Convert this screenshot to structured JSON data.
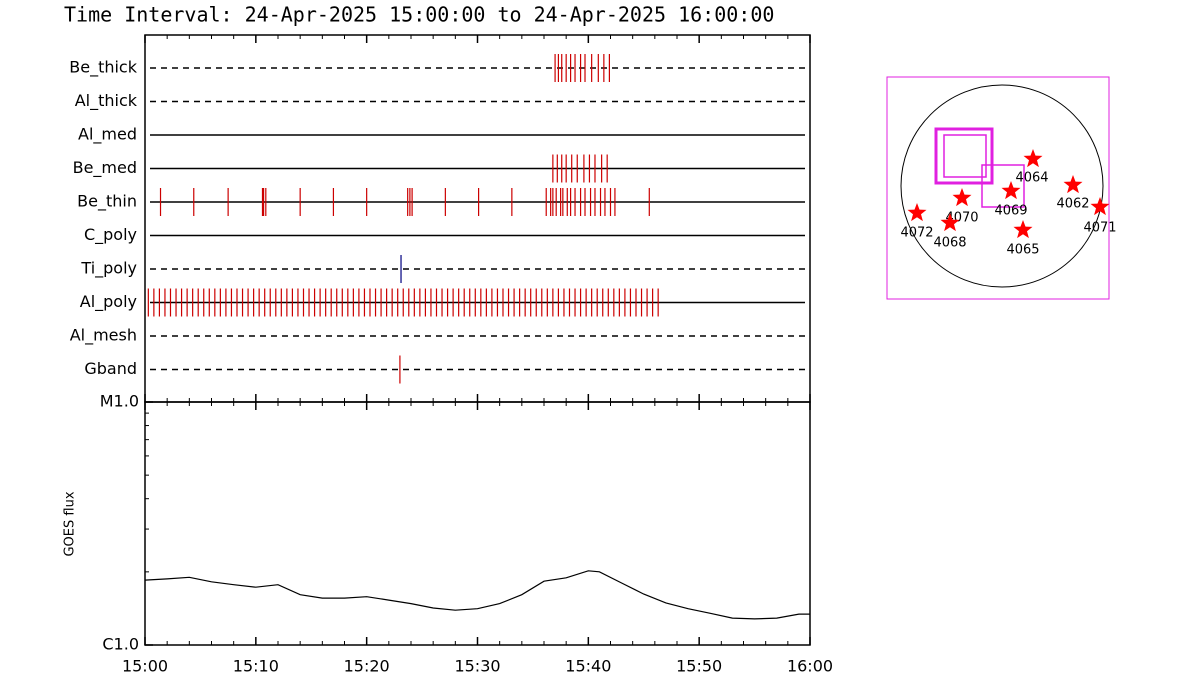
{
  "chart_data": [
    {
      "type": "event",
      "title": "Time Interval: 24-Apr-2025 15:00:00 to 24-Apr-2025 16:00:00",
      "xlim": [
        0,
        60
      ],
      "xticks": [
        0,
        10,
        20,
        30,
        40,
        50,
        60
      ],
      "minor_xticks": [
        2,
        4,
        6,
        8,
        12,
        14,
        16,
        18,
        22,
        24,
        26,
        28,
        32,
        34,
        36,
        38,
        42,
        44,
        46,
        48,
        52,
        54,
        56,
        58
      ],
      "series": [
        {
          "name": "Be_thick",
          "color": "#cc0000",
          "line_style": "dashed",
          "values": [
            37.0,
            37.3,
            37.6,
            38.0,
            38.4,
            38.8,
            39.3,
            39.7,
            40.3,
            40.9,
            41.4,
            41.9
          ]
        },
        {
          "name": "Al_thick",
          "color": "#cc0000",
          "line_style": "dashed",
          "values": []
        },
        {
          "name": "Al_med",
          "color": "#cc0000",
          "line_style": "solid",
          "values": []
        },
        {
          "name": "Be_med",
          "color": "#cc0000",
          "line_style": "solid",
          "values": [
            36.8,
            37.2,
            37.6,
            38.0,
            38.5,
            39.0,
            39.6,
            40.1,
            40.6,
            41.2,
            41.7
          ]
        },
        {
          "name": "Be_thin",
          "color": "#cc0000",
          "line_style": "solid",
          "values": [
            1.4,
            4.4,
            7.5,
            10.6,
            10.7,
            10.9,
            14.0,
            17.0,
            20.0,
            23.7,
            23.9,
            24.1,
            27.1,
            30.1,
            33.1,
            36.2,
            36.6,
            36.8,
            37.1,
            37.5,
            37.7,
            38.1,
            38.4,
            38.8,
            39.3,
            39.7,
            40.2,
            40.6,
            41.1,
            41.5,
            42.0,
            42.4,
            45.5
          ]
        },
        {
          "name": "C_poly",
          "color": "#cc0000",
          "line_style": "solid",
          "values": []
        },
        {
          "name": "Ti_poly",
          "color": "#000080",
          "line_style": "dashed",
          "values": [
            23.1
          ]
        },
        {
          "name": "Al_poly",
          "color": "#cc0000",
          "line_style": "solid",
          "values": [
            0.3,
            0.8,
            1.3,
            1.8,
            2.3,
            2.8,
            3.3,
            3.8,
            4.3,
            4.8,
            5.3,
            5.8,
            6.3,
            6.8,
            7.3,
            7.8,
            8.3,
            8.8,
            9.3,
            9.8,
            10.3,
            10.8,
            11.3,
            11.8,
            12.3,
            12.8,
            13.3,
            13.8,
            14.3,
            14.8,
            15.3,
            15.8,
            16.3,
            16.8,
            17.3,
            17.8,
            18.3,
            18.8,
            19.3,
            19.8,
            20.3,
            20.8,
            21.3,
            21.8,
            22.3,
            22.8,
            23.3,
            23.8,
            24.3,
            24.8,
            25.3,
            25.8,
            26.3,
            26.8,
            27.3,
            27.8,
            28.3,
            28.8,
            29.3,
            29.8,
            30.3,
            30.8,
            31.3,
            31.8,
            32.3,
            32.8,
            33.3,
            33.8,
            34.3,
            34.8,
            35.3,
            35.8,
            36.3,
            36.8,
            37.3,
            37.8,
            38.3,
            38.8,
            39.3,
            39.8,
            40.3,
            40.8,
            41.3,
            41.8,
            42.3,
            42.8,
            43.3,
            43.8,
            44.3,
            44.8,
            45.3,
            45.8,
            46.3
          ]
        },
        {
          "name": "Al_mesh",
          "color": "#cc0000",
          "line_style": "dashed",
          "values": []
        },
        {
          "name": "Gband",
          "color": "#cc0000",
          "line_style": "dashed",
          "values": [
            23.0
          ]
        }
      ]
    },
    {
      "type": "line",
      "y_label": "GOES flux",
      "log_y": true,
      "color": "#000000",
      "xlim": [
        0,
        60
      ],
      "xticks": [
        {
          "value": 0,
          "label": "15:00"
        },
        {
          "value": 10,
          "label": "15:10"
        },
        {
          "value": 20,
          "label": "15:20"
        },
        {
          "value": 30,
          "label": "15:30"
        },
        {
          "value": 40,
          "label": "15:40"
        },
        {
          "value": 50,
          "label": "15:50"
        },
        {
          "value": 60,
          "label": "16:00"
        }
      ],
      "minor_xticks": [
        2,
        4,
        6,
        8,
        12,
        14,
        16,
        18,
        22,
        24,
        26,
        28,
        32,
        34,
        36,
        38,
        42,
        44,
        46,
        48,
        52,
        54,
        56,
        58
      ],
      "ylim": [
        1e-06,
        1e-05
      ],
      "yticks": [
        {
          "value": 1e-06,
          "label": "C1.0"
        },
        {
          "value": 1e-05,
          "label": "M1.0"
        }
      ],
      "minor_yticks": [
        2e-06,
        3e-06,
        4e-06,
        5e-06,
        6e-06,
        7e-06,
        8e-06,
        9e-06
      ],
      "x": [
        0,
        2,
        4,
        6,
        8,
        10,
        12,
        14,
        16,
        18,
        20,
        22,
        24,
        26,
        28,
        30,
        32,
        34,
        36,
        38,
        40,
        41,
        43,
        45,
        47,
        49,
        51,
        53,
        55,
        57,
        59,
        60
      ],
      "values": [
        1.85e-06,
        1.87e-06,
        1.9e-06,
        1.82e-06,
        1.77e-06,
        1.73e-06,
        1.77e-06,
        1.61e-06,
        1.56e-06,
        1.56e-06,
        1.58e-06,
        1.53e-06,
        1.48e-06,
        1.42e-06,
        1.39e-06,
        1.41e-06,
        1.48e-06,
        1.61e-06,
        1.83e-06,
        1.89e-06,
        2.02e-06,
        2e-06,
        1.8e-06,
        1.62e-06,
        1.49e-06,
        1.41e-06,
        1.35e-06,
        1.29e-06,
        1.28e-06,
        1.29e-06,
        1.34e-06,
        1.34e-06
      ]
    }
  ],
  "map": {
    "regions": [
      "4064",
      "4062",
      "4071",
      "4069",
      "4070",
      "4072",
      "4068",
      "4065"
    ]
  }
}
